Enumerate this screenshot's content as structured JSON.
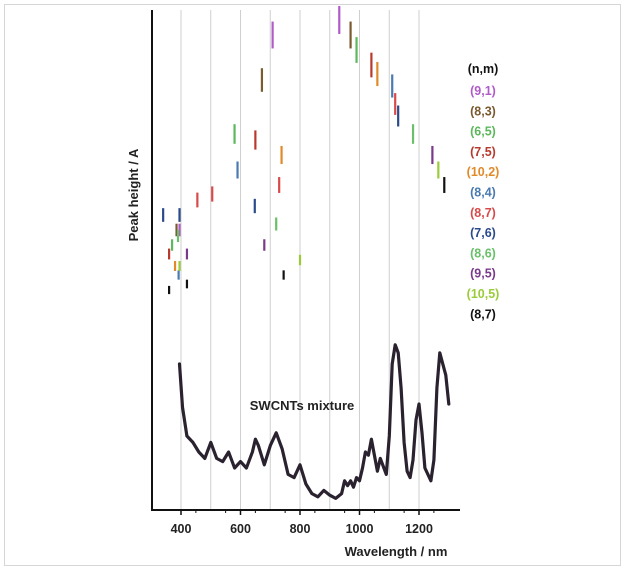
{
  "chart_data": {
    "type": "line",
    "title": "",
    "xlabel": "Wavelength / nm",
    "ylabel": "Peak height / A",
    "xlim": [
      320,
      1320
    ],
    "x_ticks": [
      400,
      600,
      800,
      1000,
      1200
    ],
    "grid_x": [
      400,
      500,
      600,
      700,
      800,
      900,
      1000,
      1100,
      1200
    ],
    "annotation": "SWCNTs mixture",
    "legend_header": "(n,m)",
    "legend_placement": "right",
    "species": [
      {
        "label": "(9,1)",
        "color": "#b05cc8",
        "peaks": [
          [
            932,
            1.0
          ],
          [
            708,
            0.95
          ],
          [
            395,
            0.3
          ]
        ]
      },
      {
        "label": "(8,3)",
        "color": "#7a5a2e",
        "peaks": [
          [
            970,
            0.95
          ],
          [
            672,
            0.8
          ],
          [
            385,
            0.3
          ]
        ]
      },
      {
        "label": "(6,5)",
        "color": "#5cb85c",
        "peaks": [
          [
            990,
            0.9
          ],
          [
            580,
            0.62
          ],
          [
            370,
            0.25
          ]
        ]
      },
      {
        "label": "(7,5)",
        "color": "#b83a2e",
        "peaks": [
          [
            1040,
            0.85
          ],
          [
            650,
            0.6
          ],
          [
            360,
            0.22
          ]
        ]
      },
      {
        "label": "(10,2)",
        "color": "#e08a2a",
        "peaks": [
          [
            1060,
            0.82
          ],
          [
            738,
            0.55
          ],
          [
            380,
            0.18
          ]
        ]
      },
      {
        "label": "(8,4)",
        "color": "#4a7ab0",
        "peaks": [
          [
            1110,
            0.78
          ],
          [
            590,
            0.5
          ],
          [
            392,
            0.15
          ]
        ]
      },
      {
        "label": "(8,7)",
        "color": "#d84a4a",
        "peaks": [
          [
            1120,
            0.72
          ],
          [
            730,
            0.45
          ],
          [
            505,
            0.42
          ],
          [
            455,
            0.4
          ]
        ]
      },
      {
        "label": "(7,6)",
        "color": "#2a4a8a",
        "peaks": [
          [
            1130,
            0.68
          ],
          [
            648,
            0.38
          ],
          [
            395,
            0.35
          ],
          [
            340,
            0.35
          ]
        ]
      },
      {
        "label": "(8,6)",
        "color": "#6ac06a",
        "peaks": [
          [
            1180,
            0.62
          ],
          [
            720,
            0.32
          ],
          [
            390,
            0.28
          ]
        ]
      },
      {
        "label": "(9,5)",
        "color": "#7a3a8a",
        "peaks": [
          [
            1245,
            0.55
          ],
          [
            680,
            0.25
          ],
          [
            420,
            0.22
          ]
        ]
      },
      {
        "label": "(10,5)",
        "color": "#9acc3a",
        "peaks": [
          [
            1265,
            0.5
          ],
          [
            800,
            0.2
          ],
          [
            395,
            0.18
          ]
        ]
      },
      {
        "label": "(8,7)",
        "color": "#111111",
        "peaks": [
          [
            1285,
            0.45
          ],
          [
            745,
            0.15
          ],
          [
            420,
            0.12
          ],
          [
            360,
            0.1
          ]
        ]
      }
    ],
    "spectrum": {
      "name": "",
      "color": "#2b2230",
      "x": [
        395,
        405,
        420,
        440,
        460,
        480,
        500,
        520,
        540,
        560,
        580,
        600,
        620,
        640,
        650,
        660,
        680,
        700,
        720,
        740,
        760,
        780,
        800,
        820,
        840,
        860,
        880,
        900,
        920,
        940,
        950,
        960,
        970,
        980,
        990,
        1000,
        1010,
        1020,
        1030,
        1040,
        1060,
        1070,
        1090,
        1100,
        1110,
        1120,
        1130,
        1140,
        1150,
        1160,
        1170,
        1180,
        1190,
        1200,
        1210,
        1220,
        1240,
        1250,
        1260,
        1270,
        1280,
        1290,
        1300
      ],
      "y": [
        0.85,
        0.58,
        0.4,
        0.36,
        0.3,
        0.26,
        0.36,
        0.26,
        0.24,
        0.3,
        0.2,
        0.24,
        0.2,
        0.3,
        0.38,
        0.34,
        0.22,
        0.34,
        0.42,
        0.32,
        0.16,
        0.14,
        0.22,
        0.1,
        0.04,
        0.02,
        0.06,
        0.03,
        0.01,
        0.04,
        0.12,
        0.09,
        0.12,
        0.08,
        0.14,
        0.12,
        0.2,
        0.3,
        0.28,
        0.38,
        0.18,
        0.26,
        0.16,
        0.4,
        0.85,
        0.97,
        0.92,
        0.7,
        0.36,
        0.18,
        0.14,
        0.25,
        0.5,
        0.6,
        0.42,
        0.2,
        0.12,
        0.25,
        0.7,
        0.92,
        0.85,
        0.78,
        0.6
      ]
    }
  }
}
